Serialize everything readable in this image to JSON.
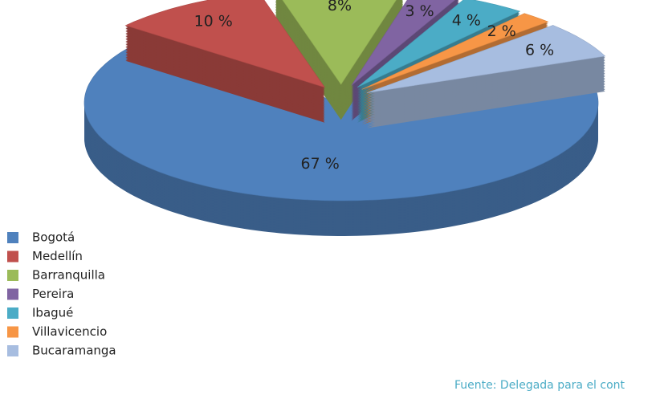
{
  "chart_data": {
    "type": "pie",
    "categories": [
      "Bogotá",
      "Medellín",
      "Barranquilla",
      "Pereira",
      "Ibagué",
      "Villavicencio",
      "Bucaramanga"
    ],
    "values": [
      67,
      10,
      8,
      3,
      4,
      2,
      6
    ],
    "value_labels": [
      "67 %",
      "10 %",
      "8%",
      "3 %",
      "4 %",
      "2 %",
      "6 %"
    ],
    "colors": [
      "#4f81bd",
      "#c0504d",
      "#9bbb59",
      "#8064a2",
      "#4bacc6",
      "#f79646",
      "#a7bde0"
    ],
    "source": "Fuente: Delegada para el cont",
    "legend": "left"
  }
}
